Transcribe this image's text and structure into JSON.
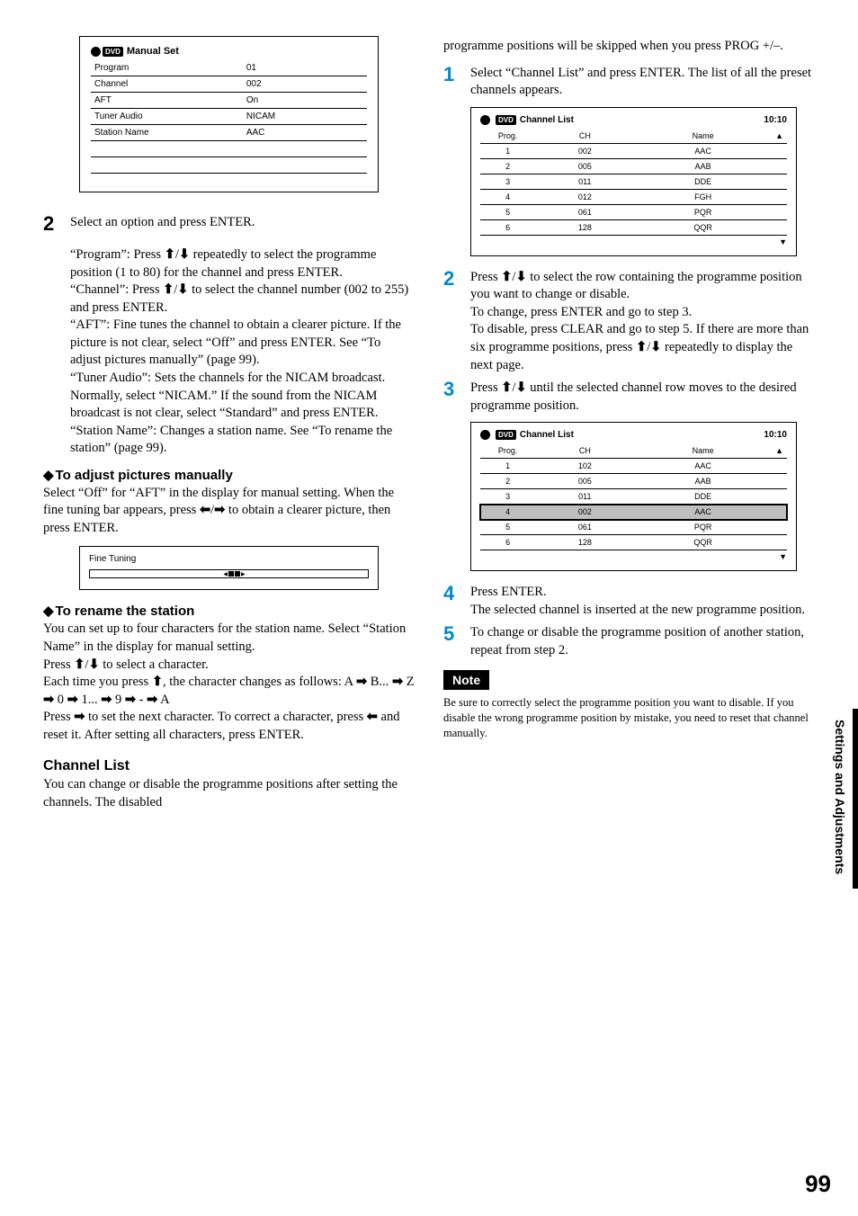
{
  "left": {
    "manual_set": {
      "title": "Manual Set",
      "rows": [
        {
          "label": "Program",
          "value": "01"
        },
        {
          "label": "Channel",
          "value": "002"
        },
        {
          "label": "AFT",
          "value": "On"
        },
        {
          "label": "Tuner Audio",
          "value": "NICAM"
        },
        {
          "label": "Station Name",
          "value": "AAC"
        }
      ],
      "blank_rows": 2
    },
    "step2": {
      "num": "2",
      "text": "Select an option and press ENTER."
    },
    "options_block": "“Program”: Press ↑/↓ repeatedly to select the programme position (1 to 80) for the channel and press ENTER.\n“Channel”: Press ↑/↓ to select the channel number (002 to 255) and press ENTER.\n“AFT”: Fine tunes the channel to obtain a clearer picture. If the picture is not clear, select “Off” and press ENTER. See “To adjust pictures manually” (page 99).\n“Tuner Audio”: Sets the channels for the NICAM broadcast. Normally, select “NICAM.” If the sound from the NICAM broadcast is not clear, select “Standard” and press ENTER.\n“Station Name”: Changes a station name. See “To rename the station” (page 99).",
    "adjust_head": "To adjust pictures manually",
    "adjust_para": "Select “Off” for “AFT” in the display for manual setting. When the fine tuning bar appears, press ←/→ to obtain a clearer picture, then press ENTER.",
    "fine_label": "Fine Tuning",
    "rename_head": "To rename the station",
    "rename_para": "You can set up to four characters for the station name. Select “Station Name” in the display for manual setting.\nPress ↑/↓ to select a character.\nEach time you press ↑, the character changes as follows: A → B... → Z → 0 → 1... → 9 → - → A\nPress → to set the next character. To correct a character, press ← and reset it. After setting all characters, press ENTER.",
    "chlist_head": "Channel List",
    "chlist_para": "You can change or disable the programme positions after setting the channels. The disabled"
  },
  "right": {
    "cont_para": "programme positions will be skipped when you press PROG +/–.",
    "step1": {
      "num": "1",
      "text": "Select “Channel List” and press ENTER. The list of all the preset channels appears."
    },
    "chlist1": {
      "title": "Channel List",
      "time": "10:10",
      "cols": [
        "Prog.",
        "CH",
        "Name"
      ],
      "rows": [
        {
          "prog": "1",
          "ch": "002",
          "name": "AAC"
        },
        {
          "prog": "2",
          "ch": "005",
          "name": "AAB"
        },
        {
          "prog": "3",
          "ch": "011",
          "name": "DDE"
        },
        {
          "prog": "4",
          "ch": "012",
          "name": "FGH"
        },
        {
          "prog": "5",
          "ch": "061",
          "name": "PQR"
        },
        {
          "prog": "6",
          "ch": "128",
          "name": "QQR"
        }
      ]
    },
    "step2": {
      "num": "2",
      "text": "Press ↑/↓ to select the row containing the programme position you want to change or disable.\nTo change, press ENTER and go to step 3.\nTo disable, press CLEAR and go to step 5. If there are more than six programme positions, press ↑/↓ repeatedly to display the next page."
    },
    "step3": {
      "num": "3",
      "text": "Press ↑/↓ until the selected channel row moves to the desired programme position."
    },
    "chlist2": {
      "title": "Channel List",
      "time": "10:10",
      "cols": [
        "Prog.",
        "CH",
        "Name"
      ],
      "rows": [
        {
          "prog": "1",
          "ch": "102",
          "name": "AAC"
        },
        {
          "prog": "2",
          "ch": "005",
          "name": "AAB"
        },
        {
          "prog": "3",
          "ch": "011",
          "name": "DDE"
        },
        {
          "prog": "4",
          "ch": "002",
          "name": "AAC",
          "selected": true
        },
        {
          "prog": "5",
          "ch": "061",
          "name": "PQR"
        },
        {
          "prog": "6",
          "ch": "128",
          "name": "QQR"
        }
      ]
    },
    "step4": {
      "num": "4",
      "text": "Press ENTER.\nThe selected channel is inserted at the new programme position."
    },
    "step5": {
      "num": "5",
      "text": "To change or disable the programme position of another station, repeat from step 2."
    },
    "note_label": "Note",
    "note_text": "Be sure to correctly select the programme position you want to disable. If you disable the wrong programme position by mistake, you need to reset that channel manually."
  },
  "side_tab": "Settings and Adjustments",
  "page_num": "99"
}
